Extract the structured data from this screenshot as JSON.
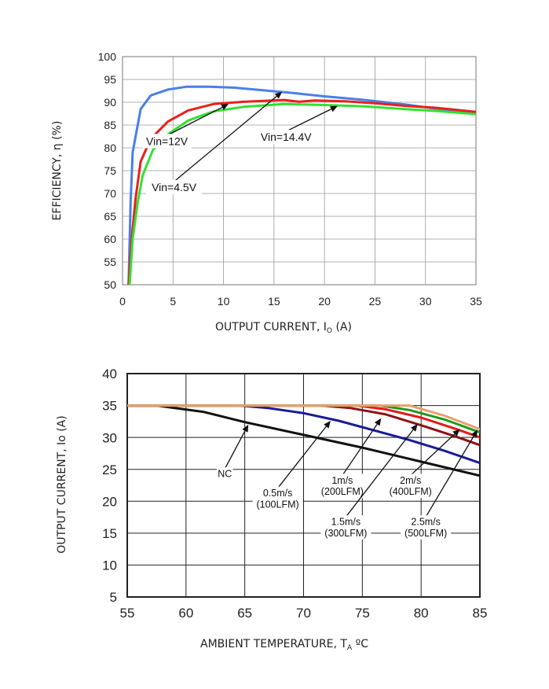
{
  "chart_data": [
    {
      "type": "line",
      "title": "",
      "xlabel": "OUTPUT CURRENT, I",
      "xlabel_sub": "O",
      "xlabel_suffix": " (A)",
      "ylabel": "EFFICIENCY, η  (%)",
      "xlim": [
        0,
        35
      ],
      "ylim": [
        50,
        100
      ],
      "xticks": [
        0,
        5,
        10,
        15,
        20,
        25,
        30,
        35
      ],
      "yticks": [
        50,
        55,
        60,
        65,
        70,
        75,
        80,
        85,
        90,
        95,
        100
      ],
      "grid": true,
      "series": [
        {
          "name": "Vin=4.5V",
          "color": "#4a7fe8",
          "x": [
            0.6,
            0.8,
            1.0,
            1.8,
            2.8,
            4.5,
            6.3,
            8.5,
            11,
            14,
            17,
            20,
            24,
            28,
            31,
            35
          ],
          "y": [
            50,
            68,
            79,
            88.5,
            91.5,
            92.8,
            93.4,
            93.4,
            93.2,
            92.6,
            92.0,
            91.3,
            90.5,
            89.5,
            88.6,
            87.7
          ]
        },
        {
          "name": "Vin=12V",
          "color": "#e8201e",
          "x": [
            0.6,
            0.9,
            1.3,
            1.8,
            2.8,
            4.5,
            6.5,
            9,
            12,
            16,
            17.5,
            19,
            22,
            25,
            28,
            31,
            35
          ],
          "y": [
            50,
            60,
            69,
            77,
            82,
            85.8,
            88.2,
            89.6,
            90.1,
            90.5,
            90.1,
            90.4,
            90.2,
            89.8,
            89.2,
            88.8,
            87.9
          ]
        },
        {
          "name": "Vin=14.4V",
          "color": "#33e033",
          "x": [
            0.7,
            1.0,
            1.5,
            2.0,
            3.0,
            4.5,
            6.5,
            9,
            12,
            16,
            20,
            24,
            28,
            31,
            35
          ],
          "y": [
            50,
            60,
            68,
            74,
            79.5,
            83,
            86,
            88,
            89,
            89.6,
            89.4,
            89.1,
            88.5,
            88.1,
            87.4
          ]
        }
      ],
      "annotations": [
        {
          "text": "Vin=12V",
          "at": [
            4.4,
            81.5
          ],
          "arrow_to": [
            10.5,
            89.6
          ]
        },
        {
          "text": "Vin=4.5V",
          "at": [
            5.1,
            71.4
          ],
          "arrow_to": [
            15.8,
            92.3
          ]
        },
        {
          "text": "Vin=14.4V",
          "at": [
            16.2,
            82.4
          ],
          "arrow_to": [
            21.3,
            89.2
          ]
        }
      ]
    },
    {
      "type": "line",
      "title": "",
      "xlabel": "AMBIENT TEMPERATURE, T",
      "xlabel_sub": "A",
      "xlabel_suffix": " ºC",
      "ylabel": "OUTPUT CURRENT, Io  (A)",
      "xlim": [
        55,
        85
      ],
      "ylim": [
        5,
        40
      ],
      "xticks": [
        55,
        60,
        65,
        70,
        75,
        80,
        85
      ],
      "yticks": [
        5,
        10,
        15,
        20,
        25,
        30,
        35,
        40
      ],
      "grid": true,
      "series": [
        {
          "name": "NC",
          "color": "#111111",
          "x": [
            55,
            57.5,
            61.5,
            65,
            70,
            75,
            80,
            85
          ],
          "y": [
            35,
            35,
            34,
            32.4,
            30.4,
            28.4,
            26.2,
            24
          ]
        },
        {
          "name": "0.5m/s (100LFM)",
          "color": "#1a1a9a",
          "x": [
            55,
            64.5,
            67,
            70,
            73,
            76,
            79,
            82,
            85
          ],
          "y": [
            35,
            35,
            34.6,
            33.8,
            32.6,
            31.1,
            29.6,
            27.9,
            26
          ]
        },
        {
          "name": "1m/s (200LFM)",
          "color": "#8b1414",
          "x": [
            55,
            71.5,
            74,
            77,
            80,
            83,
            85
          ],
          "y": [
            35,
            35,
            34.6,
            33.6,
            31.9,
            30.1,
            28.8
          ]
        },
        {
          "name": "1.5m/s (300LFM)",
          "color": "#e81818",
          "x": [
            55,
            74.5,
            77,
            80,
            83,
            85
          ],
          "y": [
            35,
            35,
            34.4,
            33.1,
            31.3,
            30
          ]
        },
        {
          "name": "2m/s (400LFM)",
          "color": "#1e9a1e",
          "x": [
            55,
            76.5,
            79,
            82,
            85
          ],
          "y": [
            35,
            35,
            34.3,
            32.8,
            30.8
          ]
        },
        {
          "name": "2.5m/s (500LFM)",
          "color": "#e8a06a",
          "x": [
            55,
            79,
            82,
            85
          ],
          "y": [
            35,
            35,
            33.4,
            31.3
          ]
        }
      ],
      "annotations": [
        {
          "text": [
            "NC"
          ],
          "at": [
            63.3,
            24.3
          ],
          "arrow_to": [
            65.3,
            32.0
          ]
        },
        {
          "text": [
            "0.5m/s",
            "(100LFM)"
          ],
          "at": [
            67.8,
            20.4
          ],
          "arrow_to": [
            72.3,
            32.6
          ]
        },
        {
          "text": [
            "1m/s",
            "(200LFM)"
          ],
          "at": [
            73.3,
            22.4
          ],
          "arrow_to": [
            76.6,
            33.0
          ]
        },
        {
          "text": [
            "1.5m/s",
            "(300LFM)"
          ],
          "at": [
            73.6,
            15.9
          ],
          "arrow_to": [
            79.7,
            32.1
          ]
        },
        {
          "text": [
            "2m/s",
            "(400LFM)"
          ],
          "at": [
            79.1,
            22.4
          ],
          "arrow_to": [
            83.3,
            31.3
          ]
        },
        {
          "text": [
            "2.5m/s",
            "(500LFM)"
          ],
          "at": [
            80.4,
            15.9
          ],
          "arrow_to": [
            84.8,
            31.2
          ]
        }
      ]
    }
  ]
}
